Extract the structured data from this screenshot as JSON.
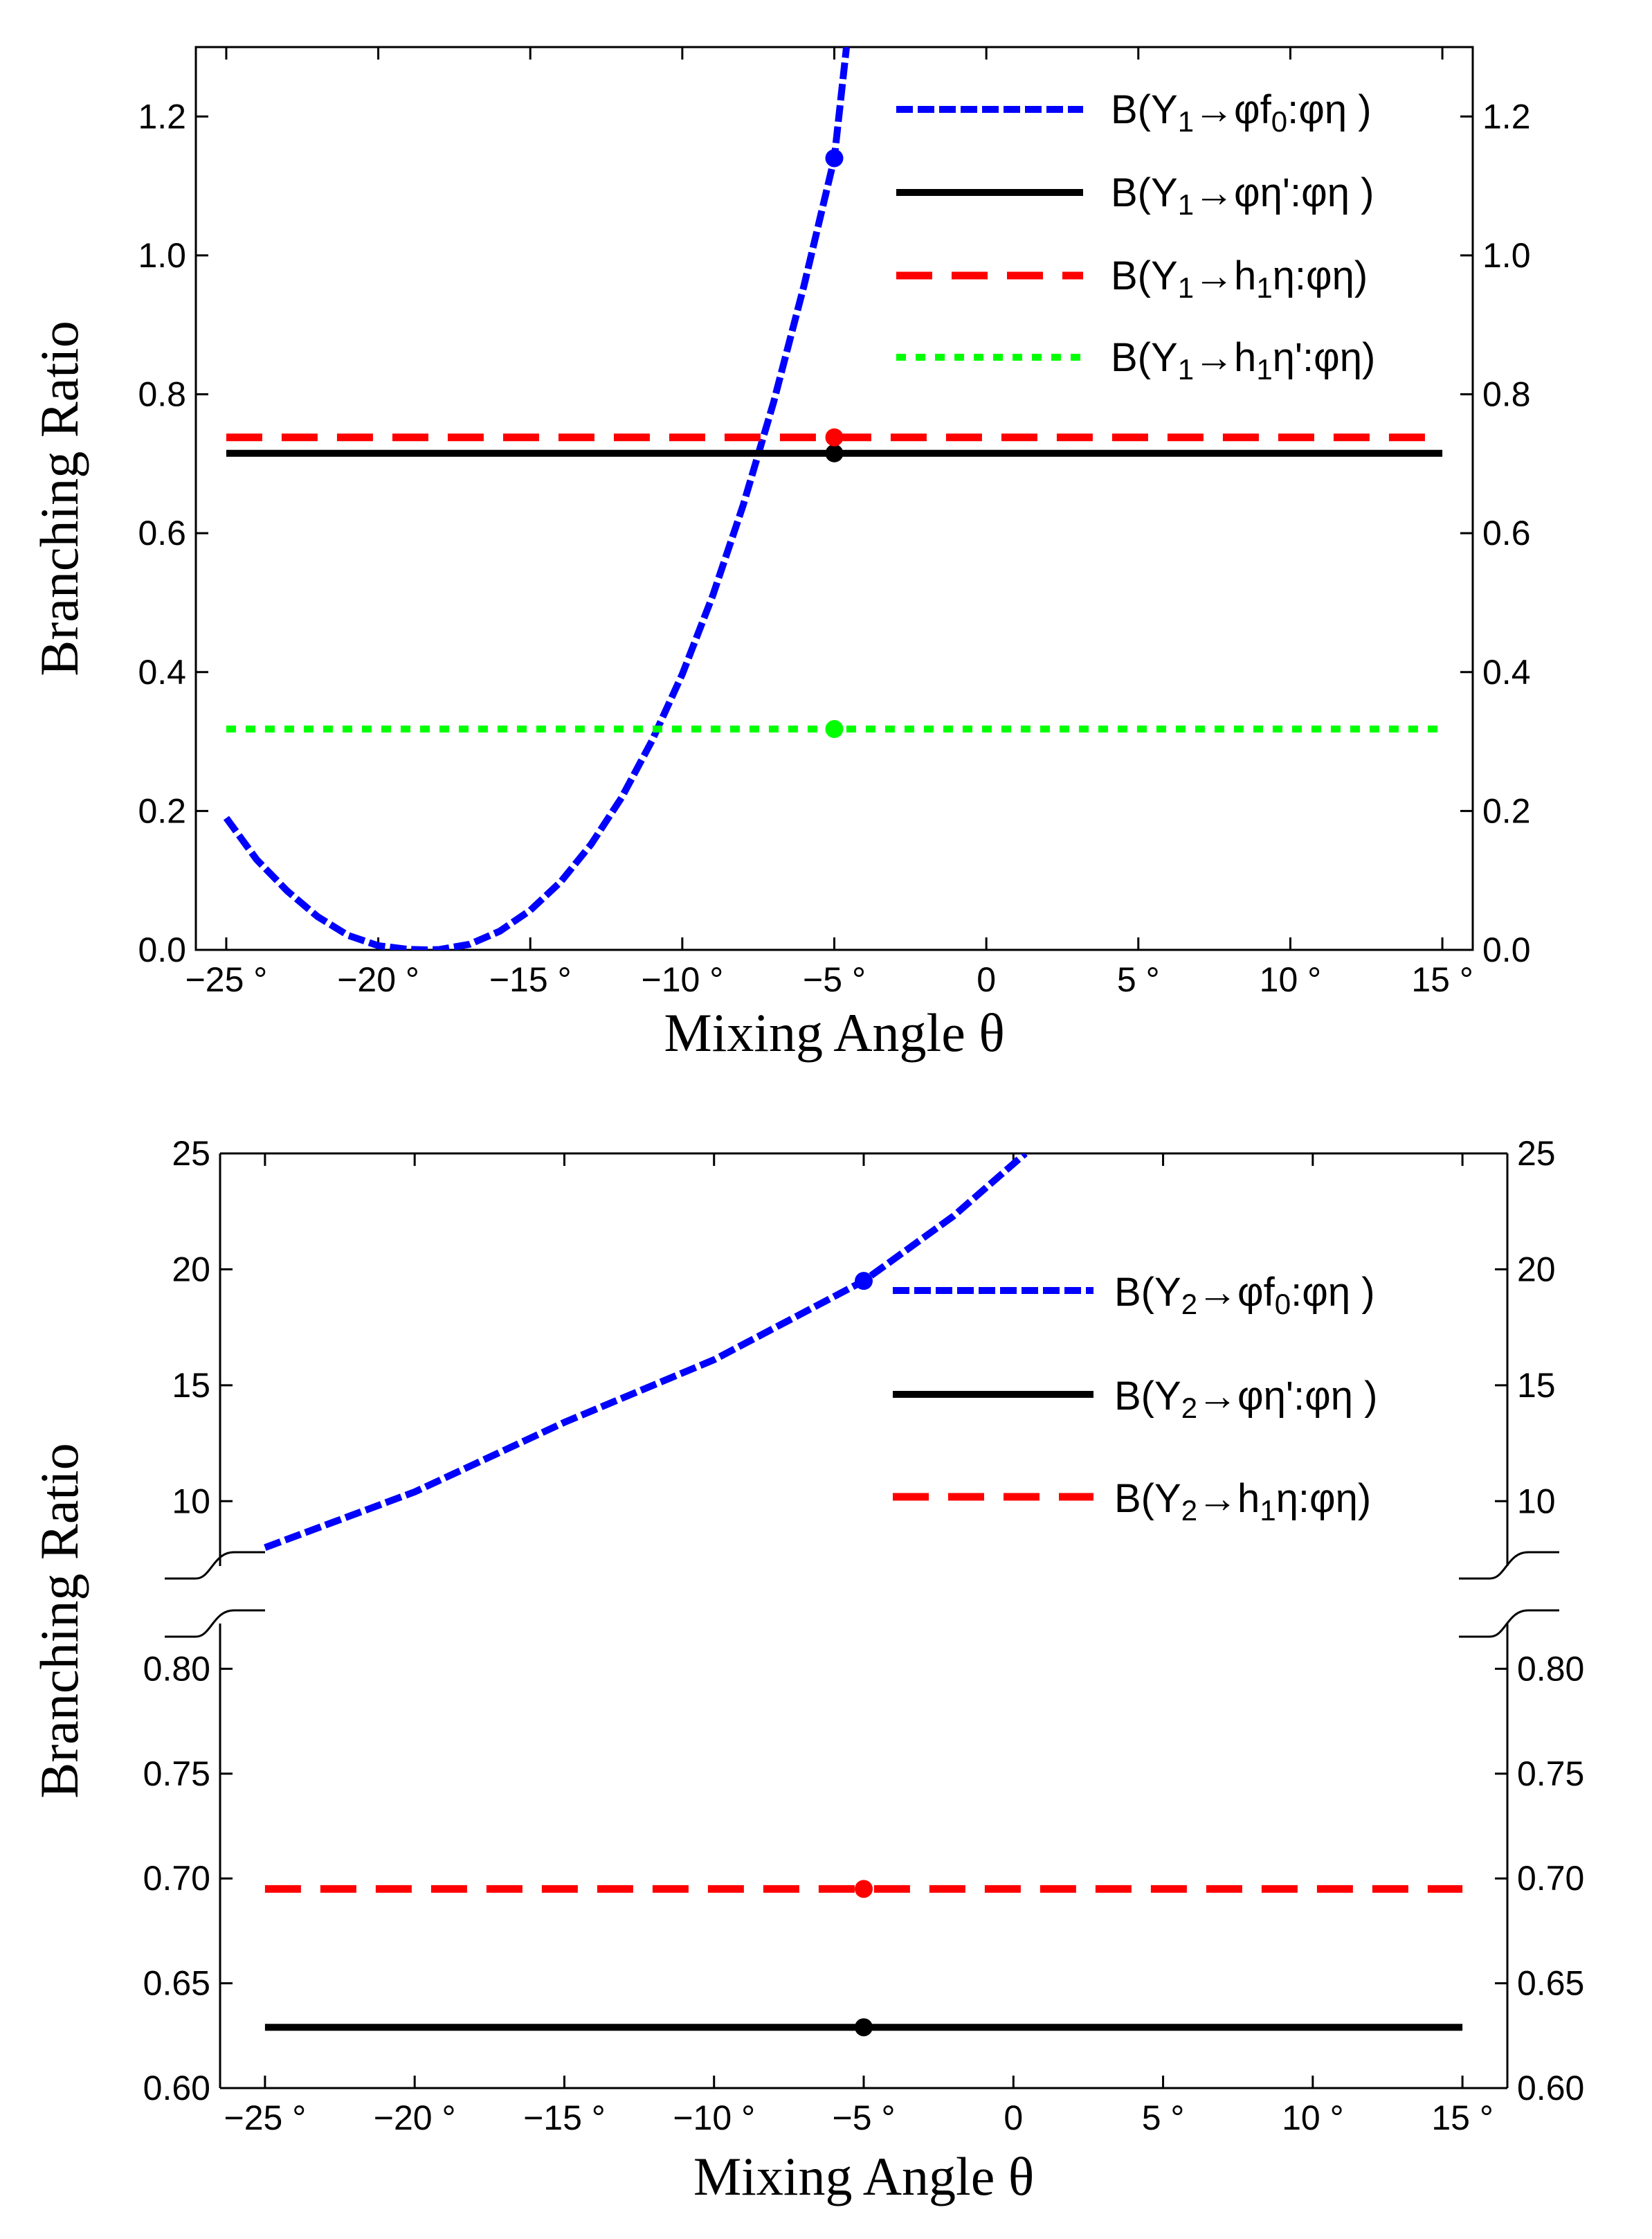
{
  "chart_data": [
    {
      "type": "line",
      "panel": "top",
      "xlabel": "Mixing Angle θ",
      "ylabel": "Branching Ratio",
      "xlim": [
        -26,
        16
      ],
      "ylim": [
        0,
        1.3
      ],
      "x_ticks": [
        -25,
        -20,
        -15,
        -10,
        -5,
        0,
        5,
        10,
        15
      ],
      "x_tick_labels": [
        "−25 °",
        "−20 °",
        "−15 °",
        "−10 °",
        "−5 °",
        "0",
        "5 °",
        "10 °",
        "15 °"
      ],
      "y_ticks": [
        0,
        0.2,
        0.4,
        0.6,
        0.8,
        1.0,
        1.2
      ],
      "y_tick_labels": [
        "0.0",
        "0.2",
        "0.4",
        "0.6",
        "0.8",
        "1.0",
        "1.2"
      ],
      "legend_position": "top-right",
      "series": [
        {
          "name": "B(Υ1→φf0:φη)",
          "label_parts": [
            "B(Υ",
            "1",
            "→φf",
            "0",
            ":φη )"
          ],
          "color": "#0000ff",
          "style": "dashed-fine",
          "x": [
            -25,
            -24,
            -23,
            -22,
            -21,
            -20,
            -19,
            -18.4,
            -18,
            -17,
            -16,
            -15,
            -14,
            -13,
            -12,
            -11,
            -10,
            -9,
            -8,
            -7,
            -6,
            -5,
            -4.6
          ],
          "y": [
            0.19,
            0.13,
            0.085,
            0.048,
            0.021,
            0.006,
            0.0007,
            0.0,
            0.0005,
            0.008,
            0.027,
            0.057,
            0.098,
            0.152,
            0.219,
            0.301,
            0.397,
            0.51,
            0.64,
            0.788,
            0.956,
            1.14,
            1.3
          ],
          "marker": {
            "x": -5,
            "y": 1.14
          }
        },
        {
          "name": "B(Υ1→φη':φη)",
          "label_parts": [
            "B(Υ",
            "1",
            "→φη':φη )"
          ],
          "color": "#000000",
          "style": "solid",
          "x": [
            -25,
            15
          ],
          "y": [
            0.715,
            0.715
          ],
          "marker": {
            "x": -5,
            "y": 0.715
          }
        },
        {
          "name": "B(Υ1→h1η:φη)",
          "label_parts": [
            "B(Υ",
            "1",
            "→h",
            "1",
            "η:φη)"
          ],
          "color": "#ff0000",
          "style": "dashed-long",
          "x": [
            -25,
            15
          ],
          "y": [
            0.738,
            0.738
          ],
          "marker": {
            "x": -5,
            "y": 0.738
          }
        },
        {
          "name": "B(Υ1→h1η':φη)",
          "label_parts": [
            "B(Υ",
            "1",
            "→h",
            "1",
            "η':φη)"
          ],
          "color": "#00ff00",
          "style": "dotted",
          "x": [
            -25,
            15
          ],
          "y": [
            0.318,
            0.318
          ],
          "marker": {
            "x": -5,
            "y": 0.318
          }
        }
      ]
    },
    {
      "type": "line",
      "panel": "bottom",
      "xlabel": "Mixing Angle θ",
      "ylabel": "Branching Ratio",
      "xlim": [
        -26.5,
        16.5
      ],
      "broken_y_axis": true,
      "ylim_upper": [
        7.5,
        25
      ],
      "ylim_lower": [
        0.6,
        0.815
      ],
      "x_ticks": [
        -25,
        -20,
        -15,
        -10,
        -5,
        0,
        5,
        10,
        15
      ],
      "x_tick_labels": [
        "−25 °",
        "−20 °",
        "−15 °",
        "−10 °",
        "−5 °",
        "0",
        "5 °",
        "10 °",
        "15 °"
      ],
      "y_ticks_upper": [
        10,
        15,
        20,
        25
      ],
      "y_tick_labels_upper": [
        "10",
        "15",
        "20",
        "25"
      ],
      "y_ticks_lower": [
        0.6,
        0.65,
        0.7,
        0.75,
        0.8
      ],
      "y_tick_labels_lower": [
        "0.60",
        "0.65",
        "0.70",
        "0.75",
        "0.80"
      ],
      "legend_position": "right",
      "series": [
        {
          "name": "B(Υ2→φf0:φη)",
          "label_parts": [
            "B(Υ",
            "2",
            "→φf",
            "0",
            ":φη )"
          ],
          "color": "#0000ff",
          "style": "dashed-fine",
          "x": [
            -25,
            -20,
            -15,
            -10,
            -5,
            -2,
            0.4
          ],
          "y": [
            8.0,
            10.4,
            13.4,
            16.1,
            19.5,
            22.3,
            25
          ],
          "marker": {
            "x": -5,
            "y": 19.5
          }
        },
        {
          "name": "B(Υ2→φη':φη)",
          "label_parts": [
            "B(Υ",
            "2",
            "→φη':φη )"
          ],
          "color": "#000000",
          "style": "solid",
          "x": [
            -25,
            15
          ],
          "y": [
            0.629,
            0.629
          ],
          "marker": {
            "x": -5,
            "y": 0.629
          }
        },
        {
          "name": "B(Υ2→h1η:φη)",
          "label_parts": [
            "B(Υ",
            "2",
            "→h",
            "1",
            "η:φη)"
          ],
          "color": "#ff0000",
          "style": "dashed-long",
          "x": [
            -25,
            15
          ],
          "y": [
            0.695,
            0.695
          ],
          "marker": {
            "x": -5,
            "y": 0.695
          }
        }
      ]
    }
  ]
}
